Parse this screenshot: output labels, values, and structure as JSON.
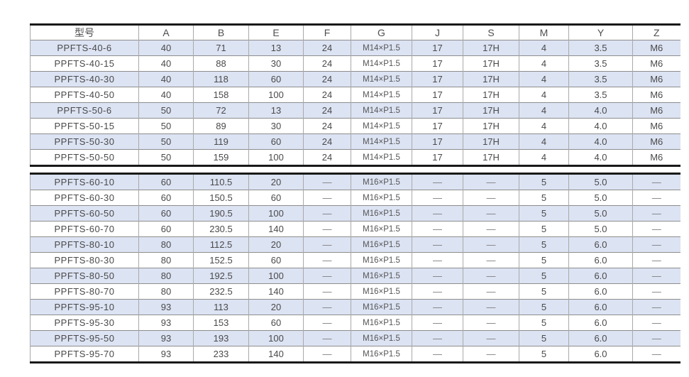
{
  "colors": {
    "row_shade": "#dce3f3",
    "row_plain": "#ffffff",
    "thick_border": "#191919",
    "grid_horizontal": "#8d8d8d",
    "grid_vertical": "#a9a9a9",
    "text": "#4a4a4a"
  },
  "table1": {
    "headers": [
      "型号",
      "A",
      "B",
      "E",
      "F",
      "G",
      "J",
      "S",
      "M",
      "Y",
      "Z"
    ],
    "rows": [
      [
        "PPFTS-40-6",
        "40",
        "71",
        "13",
        "24",
        "M14×P1.5",
        "17",
        "17H",
        "4",
        "3.5",
        "M6"
      ],
      [
        "PPFTS-40-15",
        "40",
        "88",
        "30",
        "24",
        "M14×P1.5",
        "17",
        "17H",
        "4",
        "3.5",
        "M6"
      ],
      [
        "PPFTS-40-30",
        "40",
        "118",
        "60",
        "24",
        "M14×P1.5",
        "17",
        "17H",
        "4",
        "3.5",
        "M6"
      ],
      [
        "PPFTS-40-50",
        "40",
        "158",
        "100",
        "24",
        "M14×P1.5",
        "17",
        "17H",
        "4",
        "3.5",
        "M6"
      ],
      [
        "PPFTS-50-6",
        "50",
        "72",
        "13",
        "24",
        "M14×P1.5",
        "17",
        "17H",
        "4",
        "4.0",
        "M6"
      ],
      [
        "PPFTS-50-15",
        "50",
        "89",
        "30",
        "24",
        "M14×P1.5",
        "17",
        "17H",
        "4",
        "4.0",
        "M6"
      ],
      [
        "PPFTS-50-30",
        "50",
        "119",
        "60",
        "24",
        "M14×P1.5",
        "17",
        "17H",
        "4",
        "4.0",
        "M6"
      ],
      [
        "PPFTS-50-50",
        "50",
        "159",
        "100",
        "24",
        "M14×P1.5",
        "17",
        "17H",
        "4",
        "4.0",
        "M6"
      ]
    ]
  },
  "table2": {
    "rows": [
      [
        "PPFTS-60-10",
        "60",
        "110.5",
        "20",
        "—",
        "M16×P1.5",
        "—",
        "—",
        "5",
        "5.0",
        "—"
      ],
      [
        "PPFTS-60-30",
        "60",
        "150.5",
        "60",
        "—",
        "M16×P1.5",
        "—",
        "—",
        "5",
        "5.0",
        "—"
      ],
      [
        "PPFTS-60-50",
        "60",
        "190.5",
        "100",
        "—",
        "M16×P1.5",
        "—",
        "—",
        "5",
        "5.0",
        "—"
      ],
      [
        "PPFTS-60-70",
        "60",
        "230.5",
        "140",
        "—",
        "M16×P1.5",
        "—",
        "—",
        "5",
        "5.0",
        "—"
      ],
      [
        "PPFTS-80-10",
        "80",
        "112.5",
        "20",
        "—",
        "M16×P1.5",
        "—",
        "—",
        "5",
        "6.0",
        "—"
      ],
      [
        "PPFTS-80-30",
        "80",
        "152.5",
        "60",
        "—",
        "M16×P1.5",
        "—",
        "—",
        "5",
        "6.0",
        "—"
      ],
      [
        "PPFTS-80-50",
        "80",
        "192.5",
        "100",
        "—",
        "M16×P1.5",
        "—",
        "—",
        "5",
        "6.0",
        "—"
      ],
      [
        "PPFTS-80-70",
        "80",
        "232.5",
        "140",
        "—",
        "M16×P1.5",
        "—",
        "—",
        "5",
        "6.0",
        "—"
      ],
      [
        "PPFTS-95-10",
        "93",
        "113",
        "20",
        "—",
        "M16×P1.5",
        "—",
        "—",
        "5",
        "6.0",
        "—"
      ],
      [
        "PPFTS-95-30",
        "93",
        "153",
        "60",
        "—",
        "M16×P1.5",
        "—",
        "—",
        "5",
        "6.0",
        "—"
      ],
      [
        "PPFTS-95-50",
        "93",
        "193",
        "100",
        "—",
        "M16×P1.5",
        "—",
        "—",
        "5",
        "6.0",
        "—"
      ],
      [
        "PPFTS-95-70",
        "93",
        "233",
        "140",
        "—",
        "M16×P1.5",
        "—",
        "—",
        "5",
        "6.0",
        "—"
      ]
    ]
  }
}
